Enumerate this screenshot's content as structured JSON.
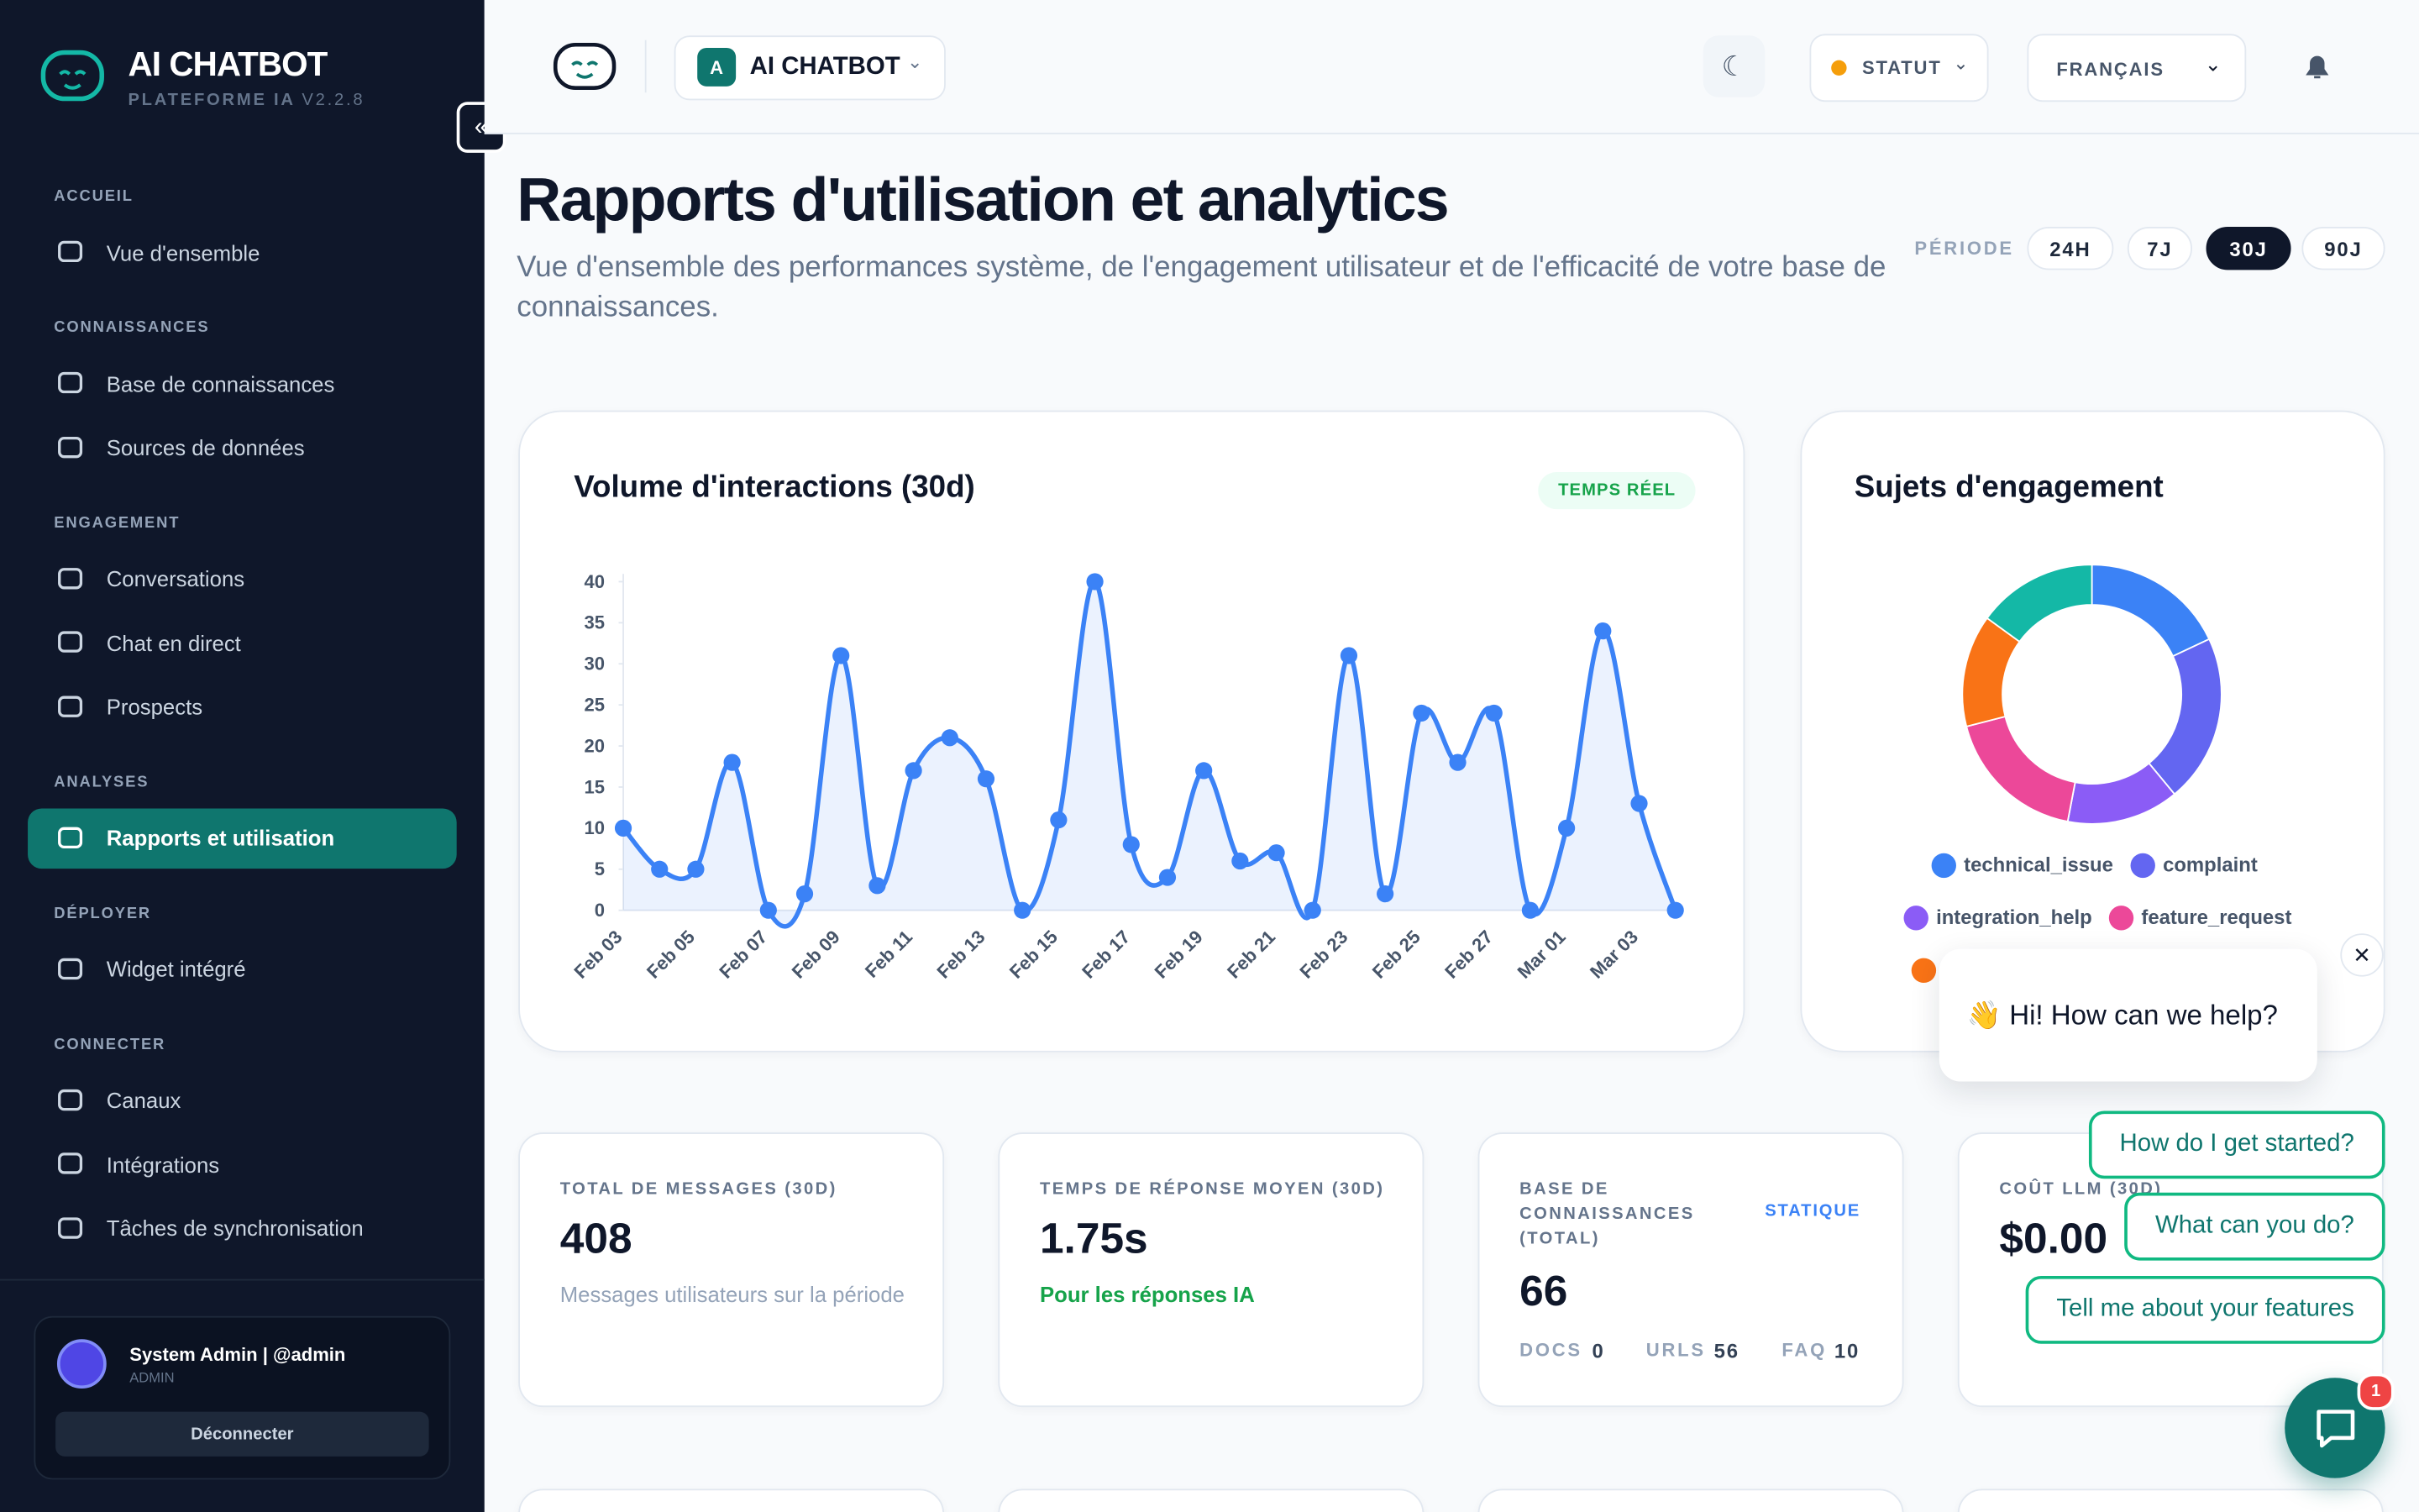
{
  "sidebar": {
    "brand": "AI CHATBOT",
    "subtitle": "PLATEFORME IA",
    "version": "V2.2.8",
    "sections": [
      {
        "title": "ACCUEIL",
        "items": [
          "Vue d'ensemble"
        ]
      },
      {
        "title": "CONNAISSANCES",
        "items": [
          "Base de connaissances",
          "Sources de données"
        ]
      },
      {
        "title": "ENGAGEMENT",
        "items": [
          "Conversations",
          "Chat en direct",
          "Prospects"
        ]
      },
      {
        "title": "ANALYSES",
        "items": [
          "Rapports et utilisation"
        ]
      },
      {
        "title": "DÉPLOYER",
        "items": [
          "Widget intégré"
        ]
      },
      {
        "title": "CONNECTER",
        "items": [
          "Canaux",
          "Intégrations",
          "Tâches de synchronisation"
        ]
      }
    ],
    "active_section": 3,
    "active_item": 0,
    "user": {
      "name": "System Admin | @admin",
      "role": "ADMIN",
      "logout": "Déconnecter"
    }
  },
  "header": {
    "avatar": "A",
    "app": "AI CHATBOT",
    "status": "STATUT",
    "language": "FRANÇAIS"
  },
  "page": {
    "title": "Rapports d'utilisation et analytics",
    "description": "Vue d'ensemble des performances système, de l'engagement utilisateur et de l'efficacité de votre base de connaissances.",
    "period_label": "PÉRIODE",
    "periods": [
      "24H",
      "7J",
      "30J",
      "90J"
    ],
    "active_period": 2
  },
  "chart_data": [
    {
      "type": "line",
      "title": "Volume d'interactions (30d)",
      "badge": "TEMPS RÉEL",
      "color": "#3b82f6",
      "categories": [
        "Feb 03",
        null,
        "Feb 05",
        null,
        "Feb 07",
        null,
        "Feb 09",
        null,
        "Feb 11",
        null,
        "Feb 13",
        null,
        "Feb 15",
        null,
        "Feb 17",
        null,
        "Feb 19",
        null,
        "Feb 21",
        null,
        "Feb 23",
        null,
        "Feb 25",
        null,
        "Feb 27",
        null,
        "Mar 01",
        null,
        "Mar 03",
        null
      ],
      "values": [
        10,
        5,
        5,
        18,
        0,
        2,
        31,
        3,
        17,
        21,
        16,
        0,
        11,
        40,
        8,
        4,
        17,
        6,
        7,
        0,
        31,
        2,
        24,
        18,
        24,
        0,
        10,
        34,
        13,
        0
      ],
      "ylim": [
        0,
        40
      ],
      "yticks": [
        0,
        5,
        10,
        15,
        20,
        25,
        30,
        35,
        40
      ]
    },
    {
      "type": "pie",
      "title": "Sujets d'engagement",
      "donut": true,
      "categories": [
        "technical_issue",
        "complaint",
        "integration_help",
        "feature_request",
        null,
        null
      ],
      "values": [
        18,
        21,
        14,
        18,
        14,
        15
      ],
      "colors": [
        "#3b82f6",
        "#6366f1",
        "#8b5cf6",
        "#ec4899",
        "#f97316",
        "#14b8a6"
      ]
    }
  ],
  "cards": [
    {
      "label": "TOTAL DE MESSAGES (30D)",
      "value": "408",
      "note": "Messages utilisateurs sur la période"
    },
    {
      "label": "TEMPS DE RÉPONSE MOYEN (30D)",
      "value": "1.75s",
      "note": "Pour les réponses IA"
    },
    {
      "label": "BASE DE CONNAISSANCES (TOTAL)",
      "badge": "STATIQUE",
      "value": "66",
      "stats": [
        {
          "label": "DOCS",
          "value": "0"
        },
        {
          "label": "URLS",
          "value": "56"
        },
        {
          "label": "FAQ",
          "value": "10"
        }
      ]
    },
    {
      "label": "COÛT LLM (30D)",
      "value": "$0.00"
    }
  ],
  "chat": {
    "greeting": "👋 Hi! How can we help?",
    "suggestions": [
      "How do I get started?",
      "What can you do?",
      "Tell me about your features"
    ],
    "badge": "1"
  }
}
